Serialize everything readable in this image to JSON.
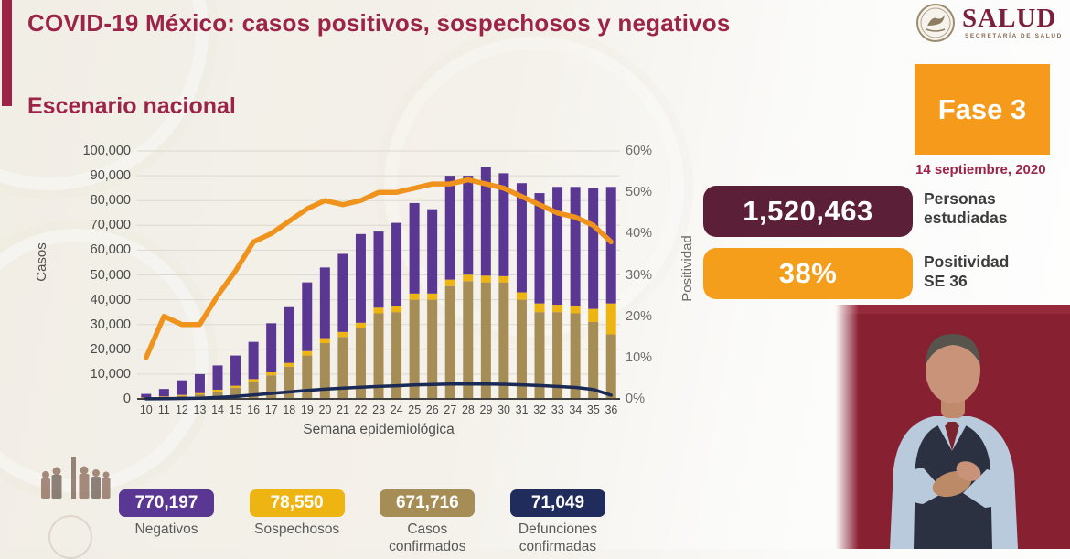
{
  "header": {
    "title": "COVID-19 México: casos positivos, sospechosos y negativos",
    "subtitle": "Escenario nacional",
    "logo_text": "SALUD",
    "logo_subtext": "SECRETARÍA DE SALUD",
    "phase_badge": "Fase 3",
    "date": "14 septiembre, 2020"
  },
  "stats": [
    {
      "value": "1,520,463",
      "label_line1": "Personas",
      "label_line2": "estudiadas",
      "color": "#5c1f38"
    },
    {
      "value": "38%",
      "label_line1": "Positividad",
      "label_line2": "SE 36",
      "color": "#f59e1b"
    }
  ],
  "legend": [
    {
      "value": "770,197",
      "label": "Negativos",
      "color": "#5b3794"
    },
    {
      "value": "78,550",
      "label": "Sospechosos",
      "color": "#eeb411"
    },
    {
      "value": "671,716",
      "label": "Casos confirmados",
      "color": "#a68c55"
    },
    {
      "value": "71,049",
      "label": "Defunciones confirmadas",
      "color": "#1f2c5c"
    }
  ],
  "chart_data": {
    "type": "bar",
    "subtype": "stacked-bars-with-lines",
    "title": "Escenario nacional",
    "xlabel": "Semana epidemiológica",
    "ylabel_left": "Casos",
    "ylabel_right": "Positividad",
    "ylim_left": [
      0,
      100000
    ],
    "ylim_right_percent": [
      0,
      60
    ],
    "yticks_left": [
      "0",
      "10,000",
      "20,000",
      "30,000",
      "40,000",
      "50,000",
      "60,000",
      "70,000",
      "80,000",
      "90,000",
      "100,000"
    ],
    "yticks_right": [
      "0%",
      "10%",
      "20%",
      "30%",
      "40%",
      "50%",
      "60%"
    ],
    "x": [
      10,
      11,
      12,
      13,
      14,
      15,
      16,
      17,
      18,
      19,
      20,
      21,
      22,
      23,
      24,
      25,
      26,
      27,
      28,
      29,
      30,
      31,
      32,
      33,
      34,
      35,
      36
    ],
    "series": [
      {
        "name": "Casos confirmados",
        "type": "bar",
        "axis": "left",
        "color": "#a68c55",
        "values": [
          350,
          700,
          1200,
          1800,
          3000,
          4500,
          7000,
          9500,
          13000,
          17500,
          22500,
          25000,
          28500,
          34500,
          35000,
          40000,
          40000,
          45500,
          47500,
          47000,
          47000,
          40000,
          35000,
          35000,
          34500,
          31000,
          26000
        ]
      },
      {
        "name": "Sospechosos",
        "type": "bar",
        "axis": "left",
        "color": "#eeb411",
        "values": [
          200,
          300,
          400,
          500,
          700,
          800,
          1000,
          1200,
          1500,
          1800,
          2000,
          2000,
          2200,
          2300,
          2400,
          2500,
          2500,
          2600,
          2600,
          2700,
          2500,
          3000,
          3500,
          3000,
          3000,
          5300,
          12500
        ]
      },
      {
        "name": "Negativos",
        "type": "bar",
        "axis": "left",
        "color": "#5b3794",
        "values": [
          1450,
          3000,
          5900,
          7700,
          9800,
          12200,
          15000,
          19800,
          22500,
          27700,
          28500,
          31500,
          35800,
          30700,
          33600,
          36500,
          34000,
          41900,
          39900,
          43800,
          41500,
          44000,
          44500,
          47500,
          48000,
          48700,
          47000
        ]
      },
      {
        "name": "Positividad",
        "type": "line",
        "axis": "right_percent",
        "color": "#f0931d",
        "values": [
          10,
          20,
          18,
          18,
          25,
          31,
          38,
          40,
          43,
          46,
          48,
          47,
          48,
          50,
          50,
          51,
          52,
          52,
          53,
          52,
          51,
          49,
          47,
          45,
          44,
          42,
          38
        ]
      },
      {
        "name": "Defunciones confirmadas",
        "type": "line",
        "axis": "left",
        "color": "#1b2a55",
        "values": [
          50,
          100,
          200,
          300,
          600,
          1000,
          1600,
          2200,
          2800,
          3400,
          3900,
          4300,
          4700,
          5000,
          5300,
          5600,
          5800,
          6000,
          6000,
          6000,
          5900,
          5700,
          5400,
          5000,
          4600,
          3800,
          1500
        ]
      }
    ],
    "grid": true,
    "legend_position": "bottom"
  }
}
